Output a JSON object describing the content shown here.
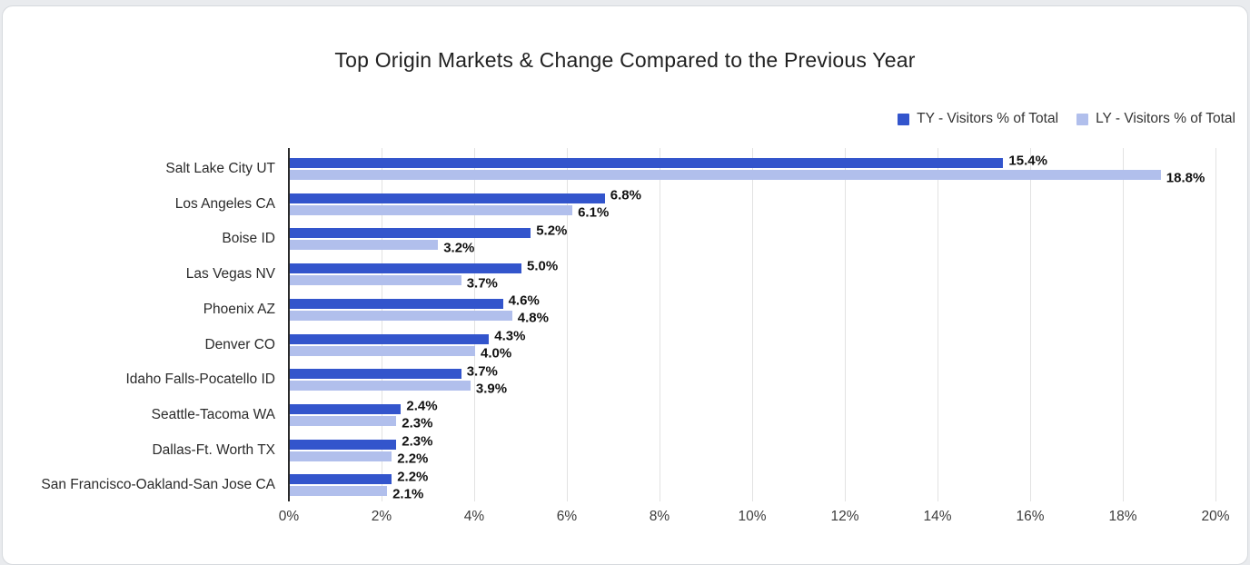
{
  "page": {
    "background_color": "#e9ebee",
    "card_background_color": "#ffffff"
  },
  "chart": {
    "title": "Top Origin Markets & Change Compared to the Previous Year",
    "title_color": "#212121",
    "gridline_color": "#e2e2e2",
    "axis_line_color": "#2a2a2a",
    "value_label_color": "#111111"
  },
  "chart_data": {
    "type": "bar",
    "orientation": "horizontal",
    "title": "Top Origin Markets & Change Compared to the Previous Year",
    "categories": [
      "Salt Lake City UT",
      "Los Angeles CA",
      "Boise ID",
      "Las Vegas NV",
      "Phoenix AZ",
      "Denver CO",
      "Idaho Falls-Pocatello ID",
      "Seattle-Tacoma WA",
      "Dallas-Ft. Worth TX",
      "San Francisco-Oakland-San Jose CA"
    ],
    "series": [
      {
        "name": "TY - Visitors % of Total",
        "color": "#3355CC",
        "values": [
          15.4,
          6.8,
          5.2,
          5.0,
          4.6,
          4.3,
          3.7,
          2.4,
          2.3,
          2.2
        ]
      },
      {
        "name": "LY - Visitors % of Total",
        "color": "#B1BFEC",
        "values": [
          18.8,
          6.1,
          3.2,
          3.7,
          4.8,
          4.0,
          3.9,
          2.3,
          2.2,
          2.1
        ]
      }
    ],
    "xlabel": "",
    "ylabel": "",
    "xlim": [
      0,
      20
    ],
    "x_ticks": [
      "0%",
      "2%",
      "4%",
      "6%",
      "8%",
      "10%",
      "12%",
      "14%",
      "16%",
      "18%",
      "20%"
    ],
    "value_label_format": "one_decimal_percent",
    "grid": "vertical",
    "legend_position": "top-right",
    "data_labels": true
  }
}
